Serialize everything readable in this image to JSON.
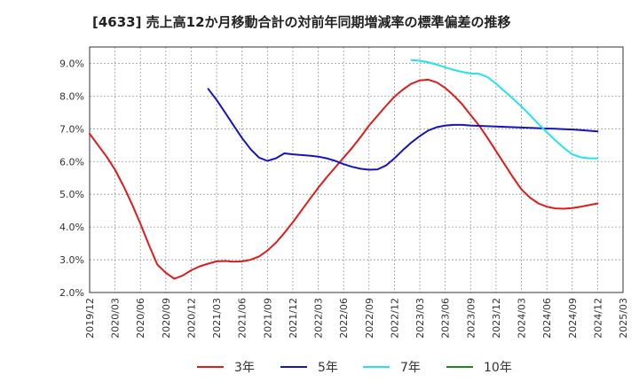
{
  "chart_data": {
    "type": "line",
    "title": "[4633]  売上高12か月移動合計の対前年同期増減率の標準偏差の推移",
    "xlabel": "",
    "ylabel": "",
    "ylim": [
      2.0,
      9.5
    ],
    "y_ticks": [
      "2.0%",
      "3.0%",
      "4.0%",
      "5.0%",
      "6.0%",
      "7.0%",
      "8.0%",
      "9.0%"
    ],
    "y_tick_values": [
      2,
      3,
      4,
      5,
      6,
      7,
      8,
      9
    ],
    "x_ticks": [
      "2019/12",
      "2020/03",
      "2020/06",
      "2020/09",
      "2020/12",
      "2021/03",
      "2021/06",
      "2021/09",
      "2021/12",
      "2022/03",
      "2022/06",
      "2022/09",
      "2022/12",
      "2023/03",
      "2023/06",
      "2023/09",
      "2023/12",
      "2024/03",
      "2024/06",
      "2024/09",
      "2024/12",
      "2025/03"
    ],
    "grid": true,
    "legend_position": "bottom",
    "series": [
      {
        "name": "3年",
        "color": "#dd1c1c",
        "points": [
          [
            0,
            6.85
          ],
          [
            1,
            6.5
          ],
          [
            2,
            6.15
          ],
          [
            3,
            5.75
          ],
          [
            4,
            5.25
          ],
          [
            5,
            4.7
          ],
          [
            6,
            4.1
          ],
          [
            7,
            3.45
          ],
          [
            8,
            2.85
          ],
          [
            9,
            2.6
          ],
          [
            10,
            2.42
          ],
          [
            11,
            2.52
          ],
          [
            12,
            2.68
          ],
          [
            13,
            2.8
          ],
          [
            14,
            2.88
          ],
          [
            15,
            2.95
          ],
          [
            16,
            2.96
          ],
          [
            17,
            2.94
          ],
          [
            18,
            2.95
          ],
          [
            19,
            3.0
          ],
          [
            20,
            3.1
          ],
          [
            21,
            3.28
          ],
          [
            22,
            3.52
          ],
          [
            23,
            3.82
          ],
          [
            24,
            4.15
          ],
          [
            25,
            4.5
          ],
          [
            26,
            4.85
          ],
          [
            27,
            5.2
          ],
          [
            28,
            5.52
          ],
          [
            29,
            5.82
          ],
          [
            30,
            6.12
          ],
          [
            31,
            6.42
          ],
          [
            32,
            6.75
          ],
          [
            33,
            7.1
          ],
          [
            34,
            7.4
          ],
          [
            35,
            7.7
          ],
          [
            36,
            7.98
          ],
          [
            37,
            8.2
          ],
          [
            38,
            8.38
          ],
          [
            39,
            8.48
          ],
          [
            40,
            8.5
          ],
          [
            41,
            8.42
          ],
          [
            42,
            8.25
          ],
          [
            43,
            8.02
          ],
          [
            44,
            7.75
          ],
          [
            45,
            7.42
          ],
          [
            46,
            7.1
          ],
          [
            47,
            6.72
          ],
          [
            48,
            6.32
          ],
          [
            49,
            5.92
          ],
          [
            50,
            5.52
          ],
          [
            51,
            5.15
          ],
          [
            52,
            4.9
          ],
          [
            53,
            4.72
          ],
          [
            54,
            4.62
          ],
          [
            55,
            4.57
          ],
          [
            56,
            4.56
          ],
          [
            57,
            4.58
          ],
          [
            58,
            4.62
          ],
          [
            59,
            4.67
          ],
          [
            60,
            4.72
          ]
        ]
      },
      {
        "name": "5年",
        "color": "#1515c0",
        "points": [
          [
            14,
            8.22
          ],
          [
            15,
            7.88
          ],
          [
            16,
            7.5
          ],
          [
            17,
            7.1
          ],
          [
            18,
            6.72
          ],
          [
            19,
            6.38
          ],
          [
            20,
            6.12
          ],
          [
            21,
            6.02
          ],
          [
            22,
            6.1
          ],
          [
            23,
            6.25
          ],
          [
            24,
            6.22
          ],
          [
            25,
            6.2
          ],
          [
            26,
            6.18
          ],
          [
            27,
            6.15
          ],
          [
            28,
            6.1
          ],
          [
            29,
            6.02
          ],
          [
            30,
            5.92
          ],
          [
            31,
            5.84
          ],
          [
            32,
            5.78
          ],
          [
            33,
            5.75
          ],
          [
            34,
            5.76
          ],
          [
            35,
            5.88
          ],
          [
            36,
            6.1
          ],
          [
            37,
            6.35
          ],
          [
            38,
            6.58
          ],
          [
            39,
            6.78
          ],
          [
            40,
            6.95
          ],
          [
            41,
            7.05
          ],
          [
            42,
            7.1
          ],
          [
            43,
            7.12
          ],
          [
            44,
            7.12
          ],
          [
            45,
            7.1
          ],
          [
            46,
            7.09
          ],
          [
            47,
            7.08
          ],
          [
            48,
            7.07
          ],
          [
            49,
            7.06
          ],
          [
            50,
            7.05
          ],
          [
            51,
            7.04
          ],
          [
            52,
            7.03
          ],
          [
            53,
            7.02
          ],
          [
            54,
            7.01
          ],
          [
            55,
            7.0
          ],
          [
            56,
            6.99
          ],
          [
            57,
            6.98
          ],
          [
            58,
            6.96
          ],
          [
            59,
            6.94
          ],
          [
            60,
            6.92
          ]
        ]
      },
      {
        "name": "7年",
        "color": "#22e4ea",
        "points": [
          [
            38,
            9.1
          ],
          [
            39,
            9.08
          ],
          [
            40,
            9.03
          ],
          [
            41,
            8.96
          ],
          [
            42,
            8.88
          ],
          [
            43,
            8.8
          ],
          [
            44,
            8.74
          ],
          [
            45,
            8.69
          ],
          [
            46,
            8.68
          ],
          [
            47,
            8.58
          ],
          [
            48,
            8.38
          ],
          [
            49,
            8.15
          ],
          [
            50,
            7.92
          ],
          [
            51,
            7.68
          ],
          [
            52,
            7.42
          ],
          [
            53,
            7.15
          ],
          [
            54,
            6.9
          ],
          [
            55,
            6.65
          ],
          [
            56,
            6.42
          ],
          [
            57,
            6.22
          ],
          [
            58,
            6.13
          ],
          [
            59,
            6.1
          ],
          [
            60,
            6.1
          ]
        ]
      },
      {
        "name": "10年",
        "color": "#1a8a1a",
        "points": []
      }
    ]
  }
}
